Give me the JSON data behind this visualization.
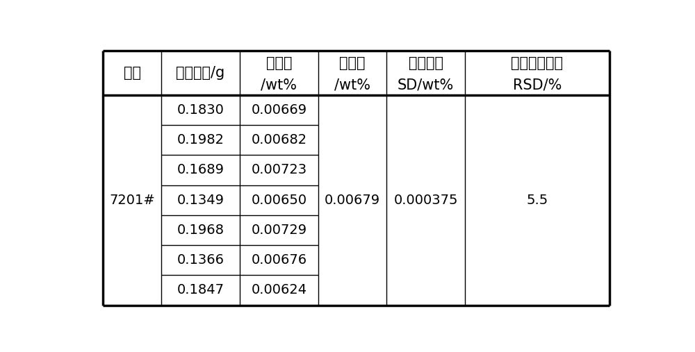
{
  "background_color": "#ffffff",
  "col0_header": "样品",
  "col1_header": "样品质量/g",
  "col2_header_top": "测得值",
  "col2_header_bot": "/wt%",
  "col3_header_top": "平均值",
  "col3_header_bot": "/wt%",
  "col4_header_top": "标准偏差",
  "col4_header_bot": "SD/wt%",
  "col5_header_top": "相对标准偏差",
  "col5_header_bot": "RSD/%",
  "sample_name": "7201#",
  "mass_values": [
    "0.1830",
    "0.1982",
    "0.1689",
    "0.1349",
    "0.1968",
    "0.1366",
    "0.1847"
  ],
  "measured_values": [
    "0.00669",
    "0.00682",
    "0.00723",
    "0.00650",
    "0.00729",
    "0.00676",
    "0.00624"
  ],
  "avg_value": "0.00679",
  "sd_value": "0.000375",
  "rsd_value": "5.5",
  "n_data_rows": 7,
  "line_color": "#000000",
  "text_color": "#000000",
  "thick_lw": 2.5,
  "thin_lw": 1.0,
  "font_size_header": 15,
  "font_size_data": 14
}
